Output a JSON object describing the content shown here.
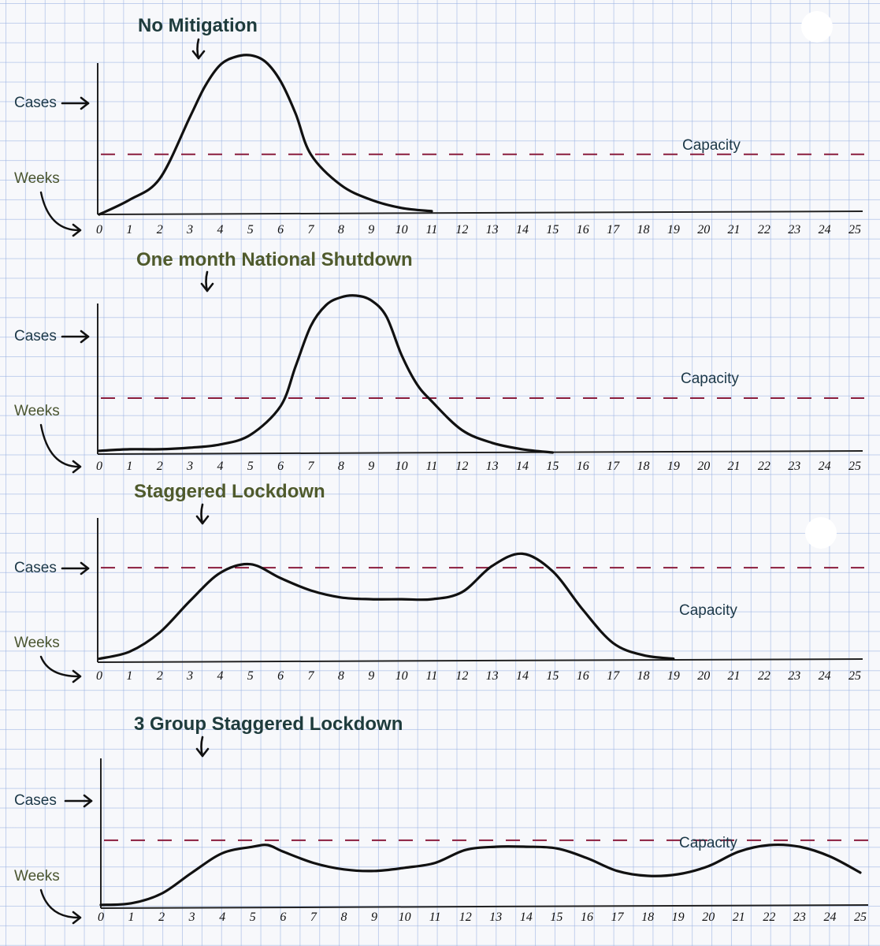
{
  "colors": {
    "title": "#1e3b3c",
    "title_alt": "#4f5a2c",
    "curve": "#111111",
    "capacity": "#8a1c3c",
    "cases_label": "#1c3848",
    "weeks_label": "#4a5530"
  },
  "chart_data": [
    {
      "type": "line",
      "title": "No Mitigation",
      "ylabel": "Cases",
      "xlabel": "Weeks",
      "capacity_label": "Capacity",
      "x_ticks": [
        "0",
        "1",
        "2",
        "3",
        "4",
        "5",
        "6",
        "7",
        "8",
        "9",
        "10",
        "11",
        "12",
        "13",
        "14",
        "15",
        "16",
        "17",
        "18",
        "19",
        "20",
        "21",
        "22",
        "23",
        "24",
        "25"
      ],
      "xlim": [
        0,
        25
      ],
      "ylim": [
        0,
        100
      ],
      "capacity": 37,
      "series": [
        {
          "x": [
            0,
            1,
            2,
            3,
            3.5,
            4,
            4.5,
            5,
            5.5,
            6,
            6.5,
            7,
            8,
            9,
            10,
            11
          ],
          "y": [
            0,
            9,
            22,
            60,
            79,
            92,
            97,
            98,
            94,
            82,
            62,
            37,
            18,
            9,
            4,
            2
          ]
        }
      ]
    },
    {
      "type": "line",
      "title": "One month National Shutdown",
      "ylabel": "Cases",
      "xlabel": "Weeks",
      "capacity_label": "Capacity",
      "x_ticks": [
        "0",
        "1",
        "2",
        "3",
        "4",
        "5",
        "6",
        "7",
        "8",
        "9",
        "10",
        "11",
        "12",
        "13",
        "14",
        "15",
        "16",
        "17",
        "18",
        "19",
        "20",
        "21",
        "22",
        "23",
        "24",
        "25"
      ],
      "xlim": [
        0,
        25
      ],
      "ylim": [
        0,
        100
      ],
      "capacity": 35,
      "series": [
        {
          "x": [
            0,
            1,
            2,
            3,
            4,
            5,
            6,
            6.5,
            7,
            7.5,
            8,
            8.5,
            9,
            9.5,
            10,
            10.5,
            11,
            12,
            13,
            14,
            15
          ],
          "y": [
            2,
            3,
            3,
            4,
            6,
            12,
            30,
            55,
            80,
            93,
            98,
            99,
            96,
            86,
            62,
            44,
            33,
            15,
            7,
            3,
            1
          ]
        }
      ]
    },
    {
      "type": "line",
      "title": "Staggered Lockdown",
      "ylabel": "Cases",
      "xlabel": "Weeks",
      "capacity_label": "Capacity",
      "x_ticks": [
        "0",
        "1",
        "2",
        "3",
        "4",
        "5",
        "6",
        "7",
        "8",
        "9",
        "10",
        "11",
        "12",
        "13",
        "14",
        "15",
        "16",
        "17",
        "18",
        "19",
        "20",
        "21",
        "22",
        "23",
        "24",
        "25"
      ],
      "xlim": [
        0,
        25
      ],
      "ylim": [
        0,
        100
      ],
      "capacity": 54,
      "series": [
        {
          "x": [
            0,
            1,
            2,
            3,
            4,
            5,
            6,
            7,
            8,
            9,
            10,
            11,
            12,
            13,
            14,
            15,
            16,
            17,
            18,
            19
          ],
          "y": [
            2,
            6,
            17,
            35,
            51,
            56,
            48,
            41,
            37,
            36,
            36,
            36,
            40,
            55,
            62,
            52,
            30,
            11,
            4,
            2
          ]
        }
      ]
    },
    {
      "type": "line",
      "title": "3 Group Staggered Lockdown",
      "ylabel": "Cases",
      "xlabel": "Weeks",
      "capacity_label": "Capacity",
      "x_ticks": [
        "0",
        "1",
        "2",
        "3",
        "4",
        "5",
        "6",
        "7",
        "8",
        "9",
        "10",
        "11",
        "12",
        "13",
        "14",
        "15",
        "16",
        "17",
        "18",
        "19",
        "20",
        "21",
        "22",
        "23",
        "24",
        "25"
      ],
      "xlim": [
        0,
        25
      ],
      "ylim": [
        0,
        100
      ],
      "capacity": 42,
      "series": [
        {
          "x": [
            0,
            1,
            2,
            3,
            4,
            5,
            5.5,
            6,
            7,
            8,
            9,
            10,
            11,
            12,
            13,
            14,
            15,
            16,
            17,
            18,
            19,
            20,
            21,
            22,
            23,
            24,
            25
          ],
          "y": [
            2,
            3,
            9,
            22,
            34,
            38,
            39,
            35,
            28,
            24,
            23,
            25,
            28,
            36,
            38,
            38,
            37,
            31,
            23,
            20,
            21,
            26,
            35,
            39,
            38,
            32,
            22
          ]
        }
      ]
    }
  ]
}
